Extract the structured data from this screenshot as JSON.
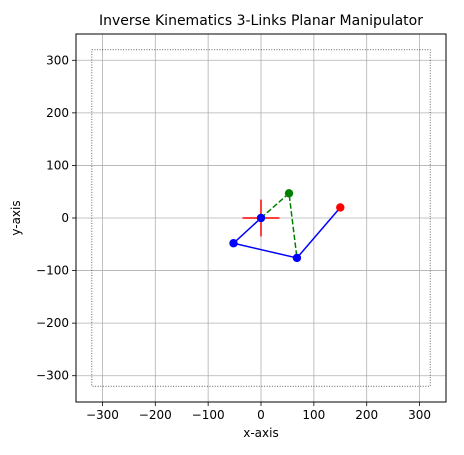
{
  "chart_data": {
    "type": "scatter",
    "title": "Inverse Kinematics 3-Links Planar Manipulator",
    "xlabel": "x-axis",
    "ylabel": "y-axis",
    "xlim": [
      -350,
      350
    ],
    "ylim": [
      -350,
      350
    ],
    "xticks": [
      -300,
      -200,
      -100,
      0,
      100,
      200,
      300
    ],
    "yticks": [
      -300,
      -200,
      -100,
      0,
      100,
      200,
      300
    ],
    "grid": true,
    "workspace_boundary": {
      "x": [
        -320,
        320
      ],
      "y": [
        -320,
        320
      ],
      "style": "dotted",
      "color": "#000000"
    },
    "arm": {
      "color": "#0000ff",
      "points": [
        [
          0,
          0
        ],
        [
          -52,
          -48
        ],
        [
          68,
          -76
        ],
        [
          150,
          20
        ]
      ]
    },
    "joints": {
      "color": "#0000ff",
      "points": [
        [
          0,
          0
        ],
        [
          -52,
          -48
        ],
        [
          68,
          -76
        ]
      ]
    },
    "end_effector": {
      "color": "#ff0000",
      "point": [
        150,
        20
      ]
    },
    "alternate_path": {
      "color": "#008000",
      "style": "dashed",
      "points": [
        [
          0,
          0
        ],
        [
          53,
          47
        ],
        [
          68,
          -76
        ]
      ]
    },
    "alternate_joint": {
      "color": "#008000",
      "point": [
        53,
        47
      ]
    },
    "base_cross": {
      "color": "#ff0000",
      "center": [
        0,
        0
      ],
      "half_size": 35
    }
  }
}
